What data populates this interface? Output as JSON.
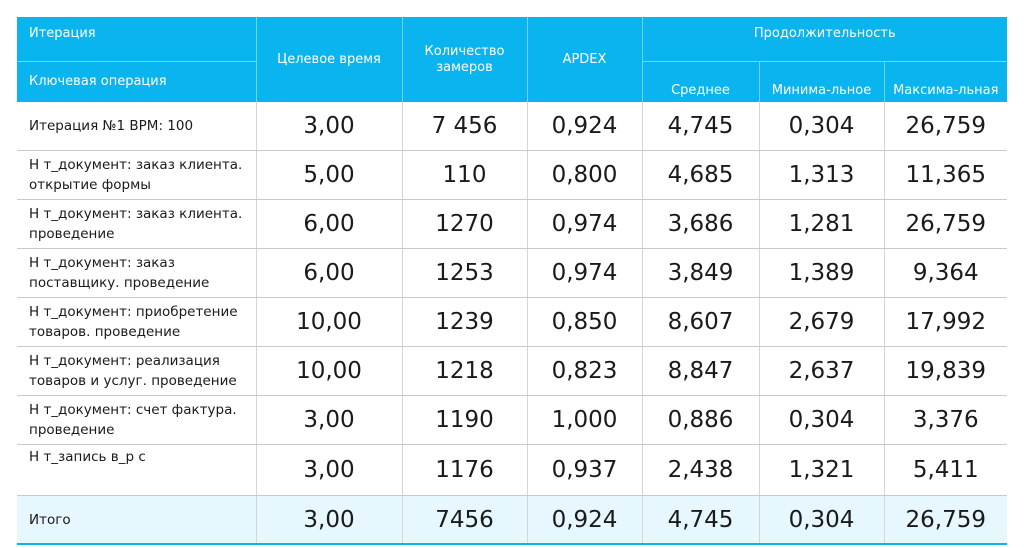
{
  "header": {
    "iteration": "Итерация",
    "key_operation": "Ключевая операция",
    "target_time": "Целевое время",
    "count": "Количество замеров",
    "apdex": "APDEX",
    "duration": "Продолжительность",
    "avg": "Среднее",
    "min": "Минима-льное",
    "max": "Максима-льная"
  },
  "rows": [
    {
      "name": "Итерация №1 BPM: 100",
      "target": "3,00",
      "count": "7 456",
      "apdex": "0,924",
      "avg": "4,745",
      "min": "0,304",
      "max": "26,759"
    },
    {
      "name": "Н т_документ: заказ клиента. открытие  формы",
      "target": "5,00",
      "count": "110",
      "apdex": "0,800",
      "avg": "4,685",
      "min": "1,313",
      "max": "11,365"
    },
    {
      "name": "Н т_документ: заказ клиента. проведение",
      "target": "6,00",
      "count": "1270",
      "apdex": "0,974",
      "avg": "3,686",
      "min": "1,281",
      "max": "26,759"
    },
    {
      "name": "Н т_документ: заказ поставщику. проведение",
      "target": "6,00",
      "count": "1253",
      "apdex": "0,974",
      "avg": "3,849",
      "min": "1,389",
      "max": "9,364"
    },
    {
      "name": "Н т_документ: приобретение товаров. проведение",
      "target": "10,00",
      "count": "1239",
      "apdex": "0,850",
      "avg": "8,607",
      "min": "2,679",
      "max": "17,992"
    },
    {
      "name": "Н т_документ: реализация товаров и услуг. проведение",
      "target": "10,00",
      "count": "1218",
      "apdex": "0,823",
      "avg": "8,847",
      "min": "2,637",
      "max": "19,839"
    },
    {
      "name": "Н т_документ: счет фактура. проведение",
      "target": "3,00",
      "count": "1190",
      "apdex": "1,000",
      "avg": "0,886",
      "min": "0,304",
      "max": "3,376"
    },
    {
      "name": "Н т_запись в_р с",
      "target": "3,00",
      "count": "1176",
      "apdex": "0,937",
      "avg": "2,438",
      "min": "1,321",
      "max": "5,411"
    },
    {
      "name": "Итого",
      "target": "3,00",
      "count": "7456",
      "apdex": "0,924",
      "avg": "4,745",
      "min": "0,304",
      "max": "26,759"
    }
  ]
}
